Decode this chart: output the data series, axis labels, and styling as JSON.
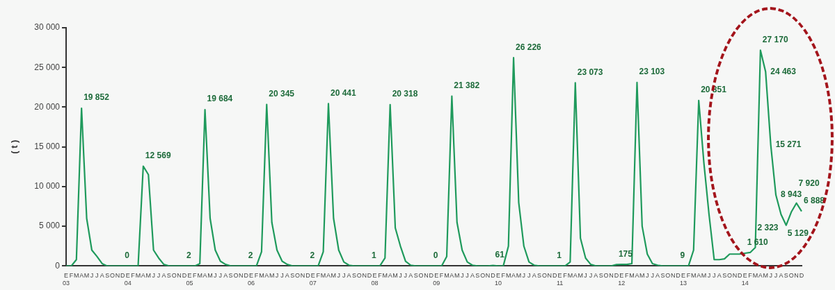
{
  "chart_data": {
    "type": "line",
    "ylabel": "( t )",
    "categories": [
      "E\n03",
      "F",
      "M",
      "A",
      "M",
      "J",
      "J",
      "A",
      "S",
      "O",
      "N",
      "D",
      "E\n04",
      "F",
      "M",
      "A",
      "M",
      "J",
      "J",
      "A",
      "S",
      "O",
      "N",
      "D",
      "E\n05",
      "F",
      "M",
      "A",
      "M",
      "J",
      "J",
      "A",
      "S",
      "O",
      "N",
      "D",
      "E\n06",
      "F",
      "M",
      "A",
      "M",
      "J",
      "J",
      "A",
      "S",
      "O",
      "N",
      "D",
      "E\n07",
      "F",
      "M",
      "A",
      "M",
      "J",
      "J",
      "A",
      "S",
      "O",
      "N",
      "D",
      "E\n08",
      "F",
      "M",
      "A",
      "M",
      "J",
      "J",
      "A",
      "S",
      "O",
      "N",
      "D",
      "E\n09",
      "F",
      "M",
      "A",
      "M",
      "J",
      "J",
      "A",
      "S",
      "O",
      "N",
      "D",
      "E\n10",
      "F",
      "M",
      "A",
      "M",
      "J",
      "J",
      "A",
      "S",
      "O",
      "N",
      "D",
      "E\n11",
      "F",
      "M",
      "A",
      "M",
      "J",
      "J",
      "A",
      "S",
      "O",
      "N",
      "D",
      "E\n12",
      "F",
      "M",
      "A",
      "M",
      "J",
      "J",
      "A",
      "S",
      "O",
      "N",
      "D",
      "E\n13",
      "F",
      "M",
      "A",
      "M",
      "J",
      "J",
      "A",
      "S",
      "O",
      "N",
      "D",
      "E\n14",
      "F",
      "M",
      "A",
      "M",
      "J",
      "J",
      "A",
      "S",
      "O",
      "N",
      "D"
    ],
    "series": [
      {
        "color": "#1f9a5c",
        "values": [
          0,
          0,
          800,
          19852,
          6000,
          2000,
          1200,
          300,
          0,
          0,
          0,
          0,
          0,
          0,
          0,
          12569,
          11500,
          2000,
          1000,
          200,
          0,
          0,
          0,
          2,
          0,
          0,
          300,
          19684,
          6000,
          2000,
          600,
          200,
          0,
          0,
          0,
          2,
          0,
          0,
          1800,
          20345,
          5500,
          2000,
          600,
          200,
          0,
          0,
          0,
          2,
          0,
          0,
          1800,
          20441,
          6000,
          2000,
          500,
          100,
          0,
          0,
          0,
          1,
          0,
          0,
          1000,
          20318,
          4800,
          2500,
          600,
          100,
          0,
          0,
          0,
          0,
          0,
          0,
          1200,
          21382,
          5500,
          2000,
          500,
          100,
          0,
          0,
          0,
          61,
          0,
          0,
          2500,
          26226,
          8000,
          2500,
          500,
          100,
          0,
          0,
          0,
          1,
          0,
          0,
          500,
          23073,
          3500,
          1000,
          200,
          0,
          0,
          0,
          0,
          175,
          200,
          200,
          300,
          23103,
          5000,
          1500,
          300,
          100,
          0,
          0,
          0,
          9,
          0,
          0,
          2000,
          20851,
          13000,
          6500,
          800,
          800,
          900,
          1500,
          1500,
          1500,
          1610,
          1700,
          2323,
          27170,
          24463,
          15271,
          8943,
          6500,
          5129,
          6800,
          7920,
          6888
        ],
        "value_labels": [
          null,
          null,
          null,
          "19 852",
          null,
          null,
          null,
          null,
          null,
          null,
          null,
          "0",
          null,
          null,
          null,
          "12 569",
          null,
          null,
          null,
          null,
          null,
          null,
          null,
          "2",
          null,
          null,
          null,
          "19 684",
          null,
          null,
          null,
          null,
          null,
          null,
          null,
          "2",
          null,
          null,
          null,
          "20 345",
          null,
          null,
          null,
          null,
          null,
          null,
          null,
          "2",
          null,
          null,
          null,
          "20 441",
          null,
          null,
          null,
          null,
          null,
          null,
          null,
          "1",
          null,
          null,
          null,
          "20 318",
          null,
          null,
          null,
          null,
          null,
          null,
          null,
          "0",
          null,
          null,
          null,
          "21 382",
          null,
          null,
          null,
          null,
          null,
          null,
          null,
          "61",
          null,
          null,
          null,
          "26 226",
          null,
          null,
          null,
          null,
          null,
          null,
          null,
          "1",
          null,
          null,
          null,
          "23 073",
          null,
          null,
          null,
          null,
          null,
          null,
          null,
          "175",
          null,
          null,
          null,
          "23 103",
          null,
          null,
          null,
          null,
          null,
          null,
          null,
          "9",
          null,
          null,
          null,
          "20 851",
          null,
          null,
          null,
          null,
          null,
          null,
          null,
          null,
          "1 610",
          null,
          "2 323",
          "27 170",
          "24 463",
          "15 271",
          "8 943",
          null,
          "5 129",
          null,
          "7 920",
          "6 888"
        ]
      }
    ],
    "ylim": [
      0,
      30000
    ],
    "yticks": [
      {
        "value": 0,
        "label": "0"
      },
      {
        "value": 5000,
        "label": "5 000"
      },
      {
        "value": 10000,
        "label": "10 000"
      },
      {
        "value": 15000,
        "label": "15 000"
      },
      {
        "value": 20000,
        "label": "20 000"
      },
      {
        "value": 25000,
        "label": "25 000"
      },
      {
        "value": 30000,
        "label": "30 000"
      }
    ],
    "grid": false,
    "legend": false,
    "marker": "none",
    "line_style": "solid"
  }
}
